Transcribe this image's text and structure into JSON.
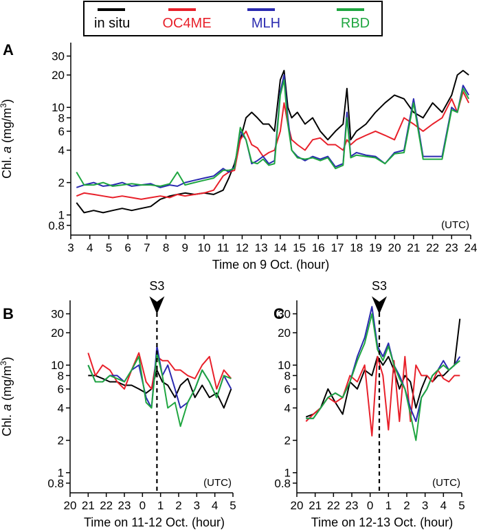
{
  "legend": [
    {
      "name": "in situ",
      "color": "#000000"
    },
    {
      "name": "OC4ME",
      "color": "#e8202a"
    },
    {
      "name": "MLH",
      "color": "#2a2ab0"
    },
    {
      "name": "RBD",
      "color": "#1fa640"
    }
  ],
  "y_tick_labels": [
    "30",
    "20",
    "10",
    "8",
    "6",
    "4",
    "2",
    "1",
    "0.8"
  ],
  "y_axis_label_prefix": "Chl. ",
  "y_axis_label_italic": "a",
  "y_axis_label_unit": " (mg/m",
  "y_axis_label_sup": "3",
  "y_axis_label_close": ")",
  "chart_data": [
    {
      "panel": "A",
      "type": "line",
      "y_scale": "log",
      "ylim": [
        0.65,
        40
      ],
      "xlim": [
        3,
        24
      ],
      "x_tick_labels": [
        "3",
        "4",
        "5",
        "6",
        "7",
        "8",
        "9",
        "10",
        "11",
        "12",
        "13",
        "14",
        "15",
        "16",
        "17",
        "18",
        "19",
        "20",
        "21",
        "22",
        "23",
        "24"
      ],
      "xlabel": "Time on 9 Oct. (hour)",
      "corner_note": "(UTC)",
      "series": [
        {
          "name": "in situ",
          "color": "#000000",
          "x": [
            3.3,
            3.7,
            4.2,
            4.7,
            5.2,
            5.7,
            6.2,
            6.7,
            7.2,
            7.7,
            8.2,
            8.6,
            9.0,
            9.5,
            10.0,
            10.5,
            11.0,
            11.3,
            11.6,
            11.9,
            12.2,
            12.5,
            12.8,
            13.1,
            13.4,
            13.7,
            14.0,
            14.2,
            14.4,
            14.6,
            14.9,
            15.3,
            15.7,
            16.1,
            16.5,
            16.9,
            17.3,
            17.5,
            17.7,
            18.0,
            18.5,
            19.0,
            19.5,
            20.0,
            20.5,
            21.0,
            21.5,
            22.0,
            22.5,
            23.0,
            23.3,
            23.6,
            23.9
          ],
          "y": [
            1.3,
            1.05,
            1.1,
            1.05,
            1.1,
            1.15,
            1.1,
            1.15,
            1.2,
            1.4,
            1.5,
            1.55,
            1.6,
            1.55,
            1.6,
            1.55,
            1.7,
            2.2,
            3,
            5,
            8,
            9,
            8,
            7,
            7,
            6,
            18,
            22,
            10,
            8,
            9,
            7,
            8,
            6,
            5,
            6,
            7,
            15,
            5,
            6,
            7,
            9,
            11,
            13,
            12,
            9,
            8,
            11,
            9,
            13,
            20,
            22,
            20
          ]
        },
        {
          "name": "OC4ME",
          "color": "#e8202a",
          "x": [
            3.3,
            3.7,
            4.2,
            4.7,
            5.2,
            5.7,
            6.2,
            6.7,
            7.2,
            7.7,
            8.2,
            8.6,
            9.0,
            9.5,
            10.0,
            10.5,
            11.0,
            11.3,
            11.6,
            11.9,
            12.2,
            12.5,
            12.8,
            13.1,
            13.4,
            13.7,
            14.0,
            14.2,
            14.4,
            14.6,
            14.9,
            15.3,
            15.7,
            16.1,
            16.5,
            16.9,
            17.3,
            17.5,
            17.7,
            18.0,
            18.5,
            19.0,
            19.5,
            20.0,
            20.5,
            21.0,
            21.5,
            22.0,
            22.5,
            23.0,
            23.3,
            23.6,
            23.9
          ],
          "y": [
            1.5,
            1.6,
            1.55,
            1.5,
            1.45,
            1.5,
            1.45,
            1.4,
            1.45,
            1.5,
            1.45,
            1.55,
            1.5,
            1.55,
            1.6,
            1.7,
            2.3,
            2.5,
            2.6,
            5,
            6,
            4.5,
            4.2,
            3.5,
            3.8,
            4,
            6,
            11,
            7,
            5,
            4.5,
            4,
            5,
            5.2,
            4.5,
            4.5,
            4,
            5,
            4.5,
            5,
            5.5,
            6,
            5.5,
            5,
            8,
            7,
            6,
            7,
            8,
            12,
            9,
            14,
            11
          ]
        },
        {
          "name": "MLH",
          "color": "#2a2ab0",
          "x": [
            3.3,
            3.7,
            4.2,
            4.7,
            5.2,
            5.7,
            6.2,
            6.7,
            7.2,
            7.7,
            8.2,
            8.6,
            9.0,
            9.5,
            10.0,
            10.5,
            11.0,
            11.3,
            11.6,
            11.9,
            12.2,
            12.5,
            12.8,
            13.1,
            13.4,
            13.7,
            14.0,
            14.2,
            14.4,
            14.6,
            14.9,
            15.3,
            15.7,
            16.1,
            16.5,
            16.9,
            17.3,
            17.5,
            17.7,
            18.0,
            18.5,
            19.0,
            19.5,
            20.0,
            20.5,
            21.0,
            21.5,
            22.0,
            22.5,
            23.0,
            23.3,
            23.6,
            23.9
          ],
          "y": [
            1.8,
            1.9,
            2.0,
            1.85,
            1.9,
            2.0,
            1.85,
            1.9,
            1.95,
            1.8,
            1.9,
            1.85,
            2.0,
            2.1,
            2.2,
            2.3,
            2.7,
            2.5,
            2.8,
            6,
            5,
            3,
            3.2,
            3.5,
            3,
            3.2,
            14,
            20,
            8,
            4,
            3.5,
            3.2,
            3.5,
            3.3,
            3.5,
            2.8,
            3,
            9,
            3.5,
            3.8,
            3.6,
            3.5,
            3,
            3.8,
            4,
            12,
            3.5,
            3.5,
            3.5,
            10,
            9,
            16,
            13
          ]
        },
        {
          "name": "RBD",
          "color": "#1fa640",
          "x": [
            3.3,
            3.7,
            4.2,
            4.7,
            5.2,
            5.7,
            6.2,
            6.7,
            7.2,
            7.7,
            8.2,
            8.6,
            9.0,
            9.5,
            10.0,
            10.5,
            11.0,
            11.3,
            11.6,
            11.9,
            12.2,
            12.5,
            12.8,
            13.1,
            13.4,
            13.7,
            14.0,
            14.2,
            14.4,
            14.6,
            14.9,
            15.3,
            15.7,
            16.1,
            16.5,
            16.9,
            17.3,
            17.5,
            17.7,
            18.0,
            18.5,
            19.0,
            19.5,
            20.0,
            20.5,
            21.0,
            21.5,
            22.0,
            22.5,
            23.0,
            23.3,
            23.6,
            23.9
          ],
          "y": [
            2.5,
            1.9,
            1.9,
            2.0,
            1.85,
            1.9,
            1.95,
            1.9,
            1.9,
            1.85,
            1.95,
            2.5,
            1.9,
            2.0,
            2.1,
            2.2,
            2.6,
            2.6,
            2.7,
            6.5,
            5,
            3.1,
            3,
            3.3,
            2.9,
            3,
            13,
            18,
            7,
            4,
            3.4,
            3.3,
            3.4,
            3.2,
            3.4,
            2.7,
            2.9,
            8,
            3.4,
            3.6,
            3.5,
            3.4,
            3,
            3.7,
            3.8,
            11,
            3.3,
            3.3,
            3.3,
            9.5,
            9,
            15,
            12
          ]
        }
      ]
    },
    {
      "panel": "B",
      "type": "line",
      "y_scale": "log",
      "ylim": [
        0.65,
        40
      ],
      "xlim": [
        20,
        29
      ],
      "x_tick_labels": [
        "20",
        "21",
        "22",
        "23",
        "0",
        "1",
        "2",
        "3",
        "4",
        "5"
      ],
      "xlabel": "Time on 11-12 Oct. (hour)",
      "corner_note": "(UTC)",
      "marker": {
        "label": "S3",
        "x": 24.8
      },
      "series": [
        {
          "name": "in situ",
          "color": "#000000",
          "x": [
            21.0,
            21.4,
            21.8,
            22.2,
            22.6,
            23.0,
            23.4,
            23.8,
            24.2,
            24.5,
            24.8,
            25.1,
            25.4,
            25.8,
            26.1,
            26.5,
            26.9,
            27.3,
            27.7,
            28.1,
            28.5,
            28.9
          ],
          "y": [
            8,
            8,
            7.5,
            7,
            7,
            6.5,
            6.5,
            6,
            5.5,
            6,
            9,
            7,
            6.5,
            5,
            6.5,
            7.5,
            5,
            6.5,
            5,
            5.5,
            4,
            6
          ]
        },
        {
          "name": "OC4ME",
          "color": "#e8202a",
          "x": [
            21.0,
            21.4,
            21.8,
            22.2,
            22.6,
            23.0,
            23.4,
            23.8,
            24.2,
            24.5,
            24.8,
            25.1,
            25.4,
            25.8,
            26.1,
            26.5,
            26.9,
            27.3,
            27.7,
            28.1,
            28.5,
            28.9
          ],
          "y": [
            13,
            8,
            10,
            9,
            7,
            6,
            9,
            13,
            7,
            6,
            12,
            11,
            11,
            9,
            9,
            8,
            7.5,
            10,
            12,
            6,
            9,
            7.5
          ]
        },
        {
          "name": "MLH",
          "color": "#2a2ab0",
          "x": [
            21.0,
            21.4,
            21.8,
            22.2,
            22.6,
            23.0,
            23.4,
            23.8,
            24.2,
            24.5,
            24.8,
            25.1,
            25.4,
            25.8,
            26.1,
            26.5,
            26.9,
            27.3,
            27.7,
            28.1,
            28.5,
            28.9
          ],
          "y": [
            10,
            7,
            7,
            8,
            8,
            7,
            9,
            10,
            5,
            4,
            15,
            8,
            10,
            6,
            4,
            4.5,
            6,
            9,
            7,
            5,
            8,
            6
          ]
        },
        {
          "name": "RBD",
          "color": "#1fa640",
          "x": [
            21.0,
            21.4,
            21.8,
            22.2,
            22.6,
            23.0,
            23.4,
            23.8,
            24.2,
            24.5,
            24.8,
            25.1,
            25.4,
            25.8,
            26.1,
            26.5,
            26.9,
            27.3,
            27.7,
            28.1,
            28.5,
            28.9
          ],
          "y": [
            10,
            7,
            7,
            8,
            7.5,
            7,
            9,
            12,
            4.5,
            4,
            13,
            8,
            4,
            4.5,
            2.7,
            4.5,
            6,
            9,
            7,
            5,
            8,
            7.5
          ]
        }
      ]
    },
    {
      "panel": "C",
      "type": "line",
      "y_scale": "log",
      "ylim": [
        0.65,
        40
      ],
      "xlim": [
        20,
        29
      ],
      "x_tick_labels": [
        "20",
        "21",
        "22",
        "23",
        "0",
        "1",
        "2",
        "3",
        "4",
        "5"
      ],
      "xlabel": "Time on 12-13 Oct. (hour)",
      "corner_note": "(UTC)",
      "marker": {
        "label": "S3",
        "x": 24.5
      },
      "series": [
        {
          "name": "in situ",
          "color": "#000000",
          "x": [
            20.5,
            20.9,
            21.3,
            21.7,
            22.1,
            22.5,
            22.9,
            23.3,
            23.7,
            24.1,
            24.4,
            24.7,
            25.0,
            25.3,
            25.6,
            25.9,
            26.2,
            26.5,
            26.8,
            27.1,
            27.4,
            27.7,
            28.0,
            28.3,
            28.6,
            28.9
          ],
          "y": [
            3.3,
            3.5,
            4,
            6,
            4.5,
            3.5,
            7,
            6,
            9,
            8,
            12,
            10,
            12,
            9,
            6,
            8,
            7,
            4,
            6,
            8,
            7,
            8,
            8,
            9,
            10,
            27
          ]
        },
        {
          "name": "OC4ME",
          "color": "#e8202a",
          "x": [
            20.5,
            20.9,
            21.3,
            21.7,
            22.1,
            22.5,
            22.9,
            23.3,
            23.7,
            24.1,
            24.4,
            24.7,
            25.0,
            25.3,
            25.6,
            25.9,
            26.2,
            26.5,
            26.8,
            27.1,
            27.4,
            27.7,
            28.0,
            28.3,
            28.6,
            28.9
          ],
          "y": [
            3,
            3.5,
            4,
            5,
            4.5,
            5,
            8,
            7,
            10,
            2.2,
            12,
            8,
            2.5,
            11,
            3,
            12,
            3,
            10,
            8,
            8,
            7,
            9,
            7.5,
            7,
            8,
            8
          ]
        },
        {
          "name": "MLH",
          "color": "#2a2ab0",
          "x": [
            20.5,
            20.9,
            21.3,
            21.7,
            22.1,
            22.5,
            22.9,
            23.3,
            23.7,
            24.1,
            24.4,
            24.7,
            25.0,
            25.3,
            25.6,
            25.9,
            26.2,
            26.5,
            26.8,
            27.1,
            27.4,
            27.7,
            28.0,
            28.3,
            28.6,
            28.9
          ],
          "y": [
            3.2,
            3.2,
            4,
            5,
            5.5,
            5,
            7,
            12,
            18,
            35,
            15,
            12,
            16,
            10,
            8,
            6,
            4,
            3,
            5,
            6,
            8,
            9,
            11,
            9,
            10,
            12
          ]
        },
        {
          "name": "RBD",
          "color": "#1fa640",
          "x": [
            20.5,
            20.9,
            21.3,
            21.7,
            22.1,
            22.5,
            22.9,
            23.3,
            23.7,
            24.1,
            24.4,
            24.7,
            25.0,
            25.3,
            25.6,
            25.9,
            26.2,
            26.5,
            26.8,
            27.1,
            27.4,
            27.7,
            28.0,
            28.3,
            28.6,
            28.9
          ],
          "y": [
            3.2,
            3.2,
            4,
            5,
            5.5,
            5,
            7,
            11,
            16,
            30,
            14,
            11,
            15,
            10,
            7.5,
            6,
            3.5,
            2,
            5,
            6,
            8,
            9,
            10,
            9,
            10,
            11
          ]
        }
      ]
    }
  ]
}
